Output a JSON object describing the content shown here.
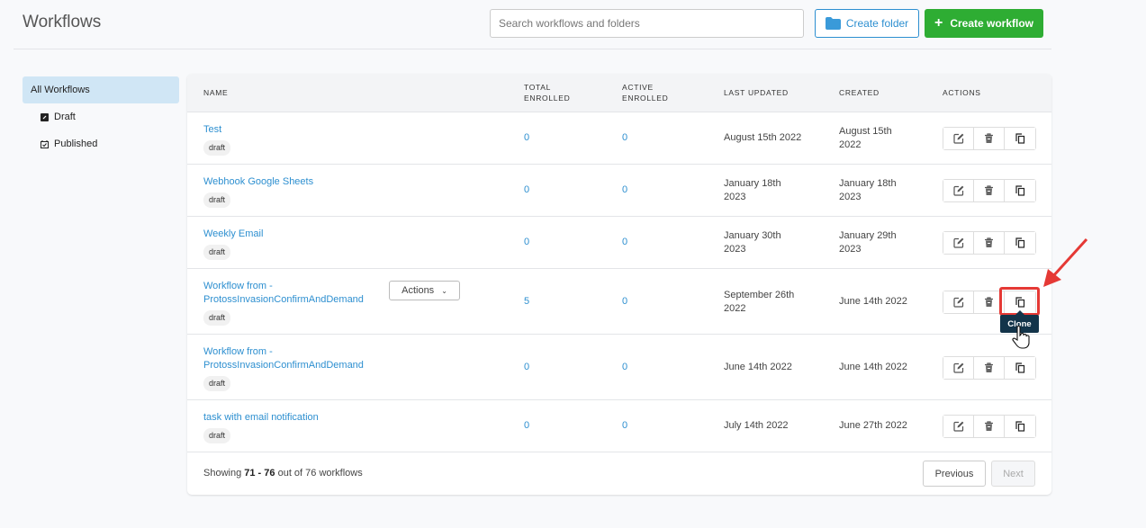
{
  "header": {
    "title": "Workflows",
    "search_placeholder": "Search workflows and folders",
    "create_folder": "Create folder",
    "create_workflow": "Create workflow"
  },
  "sidebar": {
    "items": [
      {
        "label": "All Workflows",
        "active": true
      },
      {
        "label": "Draft",
        "icon": "draft-icon"
      },
      {
        "label": "Published",
        "icon": "published-icon"
      }
    ]
  },
  "table": {
    "headers": {
      "name": "NAME",
      "total": [
        "TOTAL",
        "ENROLLED"
      ],
      "active": [
        "ACTIVE",
        "ENROLLED"
      ],
      "updated": "LAST UPDATED",
      "created": "CREATED",
      "actions": "ACTIONS"
    },
    "rows": [
      {
        "name": [
          "Test"
        ],
        "status": "draft",
        "total": "0",
        "active": "0",
        "updated": [
          "August 15th 2022"
        ],
        "created": [
          "August 15th",
          "2022"
        ]
      },
      {
        "name": [
          "Webhook Google Sheets"
        ],
        "status": "draft",
        "total": "0",
        "active": "0",
        "updated": [
          "January 18th",
          "2023"
        ],
        "created": [
          "January 18th",
          "2023"
        ]
      },
      {
        "name": [
          "Weekly Email"
        ],
        "status": "draft",
        "total": "0",
        "active": "0",
        "updated": [
          "January 30th",
          "2023"
        ],
        "created": [
          "January 29th",
          "2023"
        ]
      },
      {
        "name": [
          "Workflow from -",
          "ProtossInvasionConfirmAndDemand"
        ],
        "status": "draft",
        "total": "5",
        "active": "0",
        "updated": [
          "September 26th",
          "2022"
        ],
        "created": [
          "June 14th 2022"
        ],
        "actions_dropdown": "Actions"
      },
      {
        "name": [
          "Workflow from -",
          "ProtossInvasionConfirmAndDemand"
        ],
        "status": "draft",
        "total": "0",
        "active": "0",
        "updated": [
          "June 14th 2022"
        ],
        "created": [
          "June 14th 2022"
        ]
      },
      {
        "name": [
          "task with email notification"
        ],
        "status": "draft",
        "total": "0",
        "active": "0",
        "updated": [
          "July 14th 2022"
        ],
        "created": [
          "June 27th 2022"
        ]
      }
    ],
    "tooltip": "Clone"
  },
  "footer": {
    "showing": "Showing",
    "range": "71 - 76",
    "out_of": "out of 76 workflows",
    "previous": "Previous",
    "next": "Next"
  },
  "colors": {
    "accent": "#2d8fd0",
    "create": "#2ead33",
    "highlight": "#e53935",
    "tooltip": "#13344a"
  }
}
